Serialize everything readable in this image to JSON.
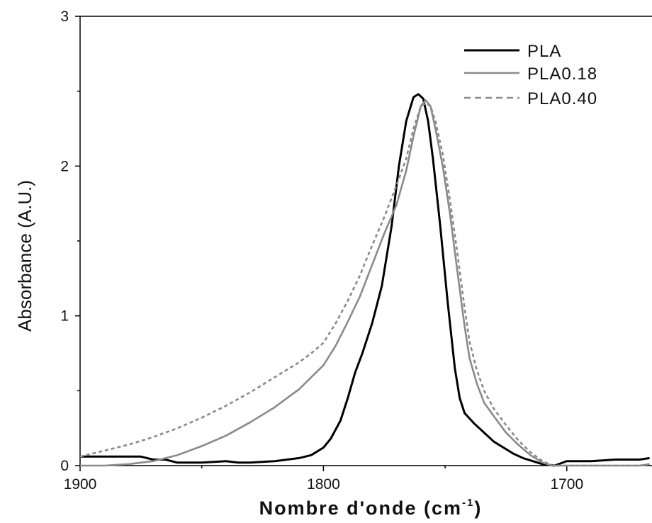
{
  "chart_data": {
    "type": "line",
    "xlabel": "Nombre d'onde (cm",
    "xlabel_sup": "-1",
    "xlabel_close": ")",
    "ylabel": "Absorbance (A.U.)",
    "xlim": [
      1900,
      1665
    ],
    "ylim": [
      0,
      3
    ],
    "x_ticks": [
      1900,
      1800,
      1700
    ],
    "y_ticks": [
      0,
      1,
      2,
      3
    ],
    "grid": false,
    "legend_position": "top-right",
    "series": [
      {
        "name": "PLA",
        "color": "#000000",
        "dash": "solid",
        "points": [
          [
            1900,
            0.06
          ],
          [
            1890,
            0.06
          ],
          [
            1880,
            0.06
          ],
          [
            1875,
            0.06
          ],
          [
            1870,
            0.04
          ],
          [
            1865,
            0.04
          ],
          [
            1860,
            0.02
          ],
          [
            1850,
            0.02
          ],
          [
            1840,
            0.03
          ],
          [
            1835,
            0.02
          ],
          [
            1830,
            0.02
          ],
          [
            1820,
            0.03
          ],
          [
            1810,
            0.05
          ],
          [
            1805,
            0.07
          ],
          [
            1800,
            0.12
          ],
          [
            1797,
            0.18
          ],
          [
            1793,
            0.3
          ],
          [
            1790,
            0.45
          ],
          [
            1787,
            0.62
          ],
          [
            1784,
            0.75
          ],
          [
            1780,
            0.95
          ],
          [
            1776,
            1.2
          ],
          [
            1772,
            1.6
          ],
          [
            1769,
            2.0
          ],
          [
            1766,
            2.3
          ],
          [
            1763,
            2.46
          ],
          [
            1761,
            2.48
          ],
          [
            1759,
            2.45
          ],
          [
            1757,
            2.3
          ],
          [
            1755,
            2.05
          ],
          [
            1752,
            1.6
          ],
          [
            1749,
            1.1
          ],
          [
            1746,
            0.65
          ],
          [
            1744,
            0.45
          ],
          [
            1742,
            0.35
          ],
          [
            1738,
            0.28
          ],
          [
            1734,
            0.22
          ],
          [
            1730,
            0.16
          ],
          [
            1726,
            0.12
          ],
          [
            1722,
            0.08
          ],
          [
            1718,
            0.05
          ],
          [
            1714,
            0.03
          ],
          [
            1710,
            0.01
          ],
          [
            1705,
            0.0
          ],
          [
            1700,
            0.03
          ],
          [
            1690,
            0.03
          ],
          [
            1680,
            0.04
          ],
          [
            1670,
            0.04
          ],
          [
            1666,
            0.05
          ]
        ]
      },
      {
        "name": "PLA0.18",
        "color": "#8a8a8a",
        "dash": "solid",
        "points": [
          [
            1900,
            0.0
          ],
          [
            1890,
            0.0
          ],
          [
            1880,
            0.01
          ],
          [
            1870,
            0.03
          ],
          [
            1860,
            0.07
          ],
          [
            1850,
            0.13
          ],
          [
            1840,
            0.2
          ],
          [
            1830,
            0.29
          ],
          [
            1820,
            0.39
          ],
          [
            1810,
            0.51
          ],
          [
            1805,
            0.59
          ],
          [
            1800,
            0.67
          ],
          [
            1795,
            0.8
          ],
          [
            1790,
            0.96
          ],
          [
            1785,
            1.13
          ],
          [
            1780,
            1.34
          ],
          [
            1775,
            1.55
          ],
          [
            1770,
            1.74
          ],
          [
            1766,
            1.97
          ],
          [
            1763,
            2.2
          ],
          [
            1760,
            2.4
          ],
          [
            1758,
            2.44
          ],
          [
            1756,
            2.4
          ],
          [
            1754,
            2.25
          ],
          [
            1751,
            2.0
          ],
          [
            1748,
            1.68
          ],
          [
            1745,
            1.3
          ],
          [
            1742,
            0.93
          ],
          [
            1740,
            0.72
          ],
          [
            1737,
            0.55
          ],
          [
            1734,
            0.42
          ],
          [
            1730,
            0.33
          ],
          [
            1725,
            0.22
          ],
          [
            1720,
            0.14
          ],
          [
            1715,
            0.07
          ],
          [
            1710,
            0.02
          ],
          [
            1706,
            0.0
          ],
          [
            1700,
            0.0
          ],
          [
            1690,
            0.0
          ],
          [
            1680,
            0.0
          ],
          [
            1670,
            0.0
          ],
          [
            1666,
            0.01
          ]
        ]
      },
      {
        "name": "PLA0.40",
        "color": "#8a8a8a",
        "dash": "dashed",
        "points": [
          [
            1900,
            0.06
          ],
          [
            1890,
            0.1
          ],
          [
            1880,
            0.14
          ],
          [
            1870,
            0.19
          ],
          [
            1860,
            0.25
          ],
          [
            1850,
            0.32
          ],
          [
            1840,
            0.4
          ],
          [
            1830,
            0.49
          ],
          [
            1820,
            0.59
          ],
          [
            1810,
            0.69
          ],
          [
            1805,
            0.75
          ],
          [
            1800,
            0.82
          ],
          [
            1795,
            0.95
          ],
          [
            1790,
            1.1
          ],
          [
            1785,
            1.27
          ],
          [
            1780,
            1.47
          ],
          [
            1775,
            1.66
          ],
          [
            1770,
            1.87
          ],
          [
            1766,
            2.05
          ],
          [
            1763,
            2.25
          ],
          [
            1760,
            2.4
          ],
          [
            1758,
            2.42
          ],
          [
            1756,
            2.4
          ],
          [
            1754,
            2.3
          ],
          [
            1751,
            2.08
          ],
          [
            1748,
            1.77
          ],
          [
            1745,
            1.42
          ],
          [
            1742,
            1.05
          ],
          [
            1740,
            0.83
          ],
          [
            1737,
            0.64
          ],
          [
            1734,
            0.5
          ],
          [
            1730,
            0.38
          ],
          [
            1725,
            0.27
          ],
          [
            1720,
            0.17
          ],
          [
            1715,
            0.09
          ],
          [
            1710,
            0.03
          ],
          [
            1706,
            0.0
          ],
          [
            1700,
            0.0
          ],
          [
            1690,
            0.0
          ],
          [
            1680,
            0.0
          ],
          [
            1670,
            0.0
          ],
          [
            1666,
            0.01
          ]
        ]
      }
    ]
  }
}
